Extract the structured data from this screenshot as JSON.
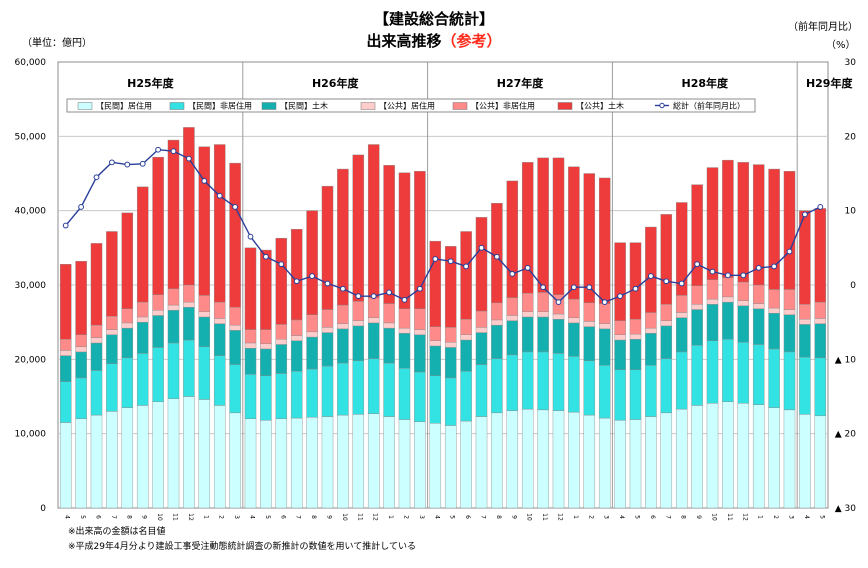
{
  "header": {
    "title": "【建設総合統計】",
    "subtitle_main": "出来高推移",
    "subtitle_accent": "（参考）",
    "unit_left": "（単位：億円）",
    "unit_right_line1": "（前年同月比）",
    "unit_right_line2": "（%）"
  },
  "notes": [
    "※出来高の金額は名目値",
    "※平成29年4月分より建設工事受注動態統計調査の新推計の数値を用いて推計している"
  ],
  "chart_data": {
    "type": "bar",
    "stacked": true,
    "categories": [
      "4",
      "5",
      "6",
      "7",
      "8",
      "9",
      "10",
      "11",
      "12",
      "1",
      "2",
      "3",
      "4",
      "5",
      "6",
      "7",
      "8",
      "9",
      "10",
      "11",
      "12",
      "1",
      "2",
      "3",
      "4",
      "5",
      "6",
      "7",
      "8",
      "9",
      "10",
      "11",
      "12",
      "1",
      "2",
      "3",
      "4",
      "5",
      "6",
      "7",
      "8",
      "9",
      "10",
      "11",
      "12",
      "1",
      "2",
      "3",
      "4",
      "5"
    ],
    "year_labels": [
      {
        "label": "H25年度",
        "start": 0,
        "end": 11
      },
      {
        "label": "H26年度",
        "start": 12,
        "end": 23
      },
      {
        "label": "H27年度",
        "start": 24,
        "end": 35
      },
      {
        "label": "H28年度",
        "start": 36,
        "end": 47
      },
      {
        "label": "H29年度",
        "start": 48,
        "end": 49
      }
    ],
    "y_left": {
      "min": 0,
      "max": 60000,
      "ticks": [
        "0",
        "10,000",
        "20,000",
        "30,000",
        "40,000",
        "50,000",
        "60,000"
      ]
    },
    "y_right": {
      "min": -30,
      "max": 30,
      "ticks": [
        "▲ 30",
        "▲ 20",
        "▲ 10",
        "0",
        "10",
        "20",
        "30"
      ]
    },
    "grid": true,
    "legend_position": "top",
    "series": [
      {
        "name": "【民間】居住用",
        "color": "#ccffff",
        "values": [
          11500,
          12000,
          12500,
          13000,
          13500,
          13800,
          14300,
          14700,
          15000,
          14600,
          13800,
          12800,
          12000,
          11800,
          12000,
          12100,
          12200,
          12300,
          12500,
          12600,
          12700,
          12300,
          11900,
          11600,
          11400,
          11100,
          11700,
          12300,
          12800,
          13100,
          13300,
          13200,
          13100,
          12900,
          12500,
          12100,
          11800,
          11900,
          12300,
          12800,
          13300,
          13800,
          14100,
          14300,
          14100,
          13900,
          13500,
          13200,
          12600,
          12400
        ]
      },
      {
        "name": "【民間】非居住用",
        "color": "#33e2e2",
        "values": [
          5500,
          5500,
          6000,
          6400,
          6700,
          7000,
          7300,
          7500,
          7600,
          7100,
          6700,
          6500,
          6000,
          6000,
          6100,
          6300,
          6500,
          6800,
          7000,
          7200,
          7400,
          7200,
          6900,
          6700,
          6400,
          6400,
          6700,
          7000,
          7300,
          7500,
          7700,
          7800,
          7700,
          7500,
          7300,
          7100,
          6800,
          6700,
          6900,
          7300,
          7700,
          8100,
          8400,
          8400,
          8200,
          8100,
          7900,
          7800,
          7700,
          7800
        ]
      },
      {
        "name": "【民間】土木",
        "color": "#14b0b0",
        "values": [
          3500,
          3500,
          3700,
          3900,
          4000,
          4200,
          4300,
          4400,
          4400,
          4000,
          4300,
          4600,
          3500,
          3600,
          3900,
          4100,
          4300,
          4500,
          4600,
          4700,
          4800,
          4700,
          4700,
          5000,
          4000,
          4100,
          4200,
          4300,
          4500,
          4600,
          4700,
          4700,
          4600,
          4500,
          4600,
          4900,
          4000,
          4100,
          4300,
          4400,
          4600,
          4800,
          4900,
          5000,
          4900,
          4800,
          4800,
          5000,
          4400,
          4600
        ]
      },
      {
        "name": "【公共】居住用",
        "color": "#ffcccc",
        "values": [
          700,
          700,
          700,
          700,
          700,
          700,
          700,
          700,
          700,
          700,
          700,
          700,
          700,
          700,
          700,
          700,
          700,
          700,
          700,
          700,
          700,
          700,
          700,
          700,
          700,
          700,
          700,
          700,
          700,
          700,
          700,
          700,
          700,
          700,
          700,
          700,
          700,
          700,
          700,
          700,
          700,
          700,
          700,
          700,
          700,
          700,
          700,
          700,
          700,
          700
        ]
      },
      {
        "name": "【公共】非居住用",
        "color": "#ff8a8a",
        "values": [
          1500,
          1600,
          1700,
          1800,
          1900,
          2000,
          2100,
          2200,
          2300,
          2200,
          2200,
          2400,
          1800,
          1900,
          2000,
          2100,
          2300,
          2400,
          2500,
          2600,
          2700,
          2600,
          2600,
          2800,
          1900,
          2000,
          2100,
          2200,
          2300,
          2400,
          2500,
          2600,
          2600,
          2500,
          2500,
          2700,
          1900,
          2000,
          2100,
          2200,
          2300,
          2500,
          2600,
          2600,
          2500,
          2500,
          2500,
          2700,
          2000,
          2200
        ]
      },
      {
        "name": "【公共】土木",
        "color": "#ee3b3b",
        "values": [
          10100,
          9900,
          11000,
          11400,
          12900,
          15500,
          18500,
          20000,
          21200,
          20000,
          21200,
          19400,
          11000,
          10700,
          11600,
          12200,
          14000,
          16600,
          18300,
          19700,
          20600,
          18600,
          18300,
          18500,
          11500,
          10900,
          11800,
          12600,
          13400,
          15700,
          17600,
          18100,
          18400,
          17800,
          17400,
          16900,
          10500,
          10300,
          11500,
          12100,
          12500,
          13600,
          15100,
          15800,
          16100,
          16200,
          16200,
          15900,
          12600,
          12600
        ]
      },
      {
        "name": "総計（前年同月比）",
        "color": "#2a3f9a",
        "type": "line",
        "axis": "right",
        "values": [
          8,
          10.5,
          14.5,
          16.5,
          16.2,
          16.3,
          18.2,
          18,
          17,
          14,
          12,
          10.5,
          6.5,
          3.8,
          2.8,
          0.5,
          1.2,
          0.2,
          -0.5,
          -1.5,
          -1.5,
          -1,
          -2,
          -0.5,
          3.5,
          3.2,
          2.5,
          5,
          3.8,
          1.5,
          2.3,
          -0.3,
          -2.3,
          -0.3,
          -0.3,
          -2.3,
          -1.5,
          -0.5,
          1.2,
          0.5,
          0.2,
          2.8,
          1.8,
          1.3,
          1.3,
          2.3,
          2.5,
          4.5,
          9.5,
          10.5
        ]
      }
    ]
  }
}
